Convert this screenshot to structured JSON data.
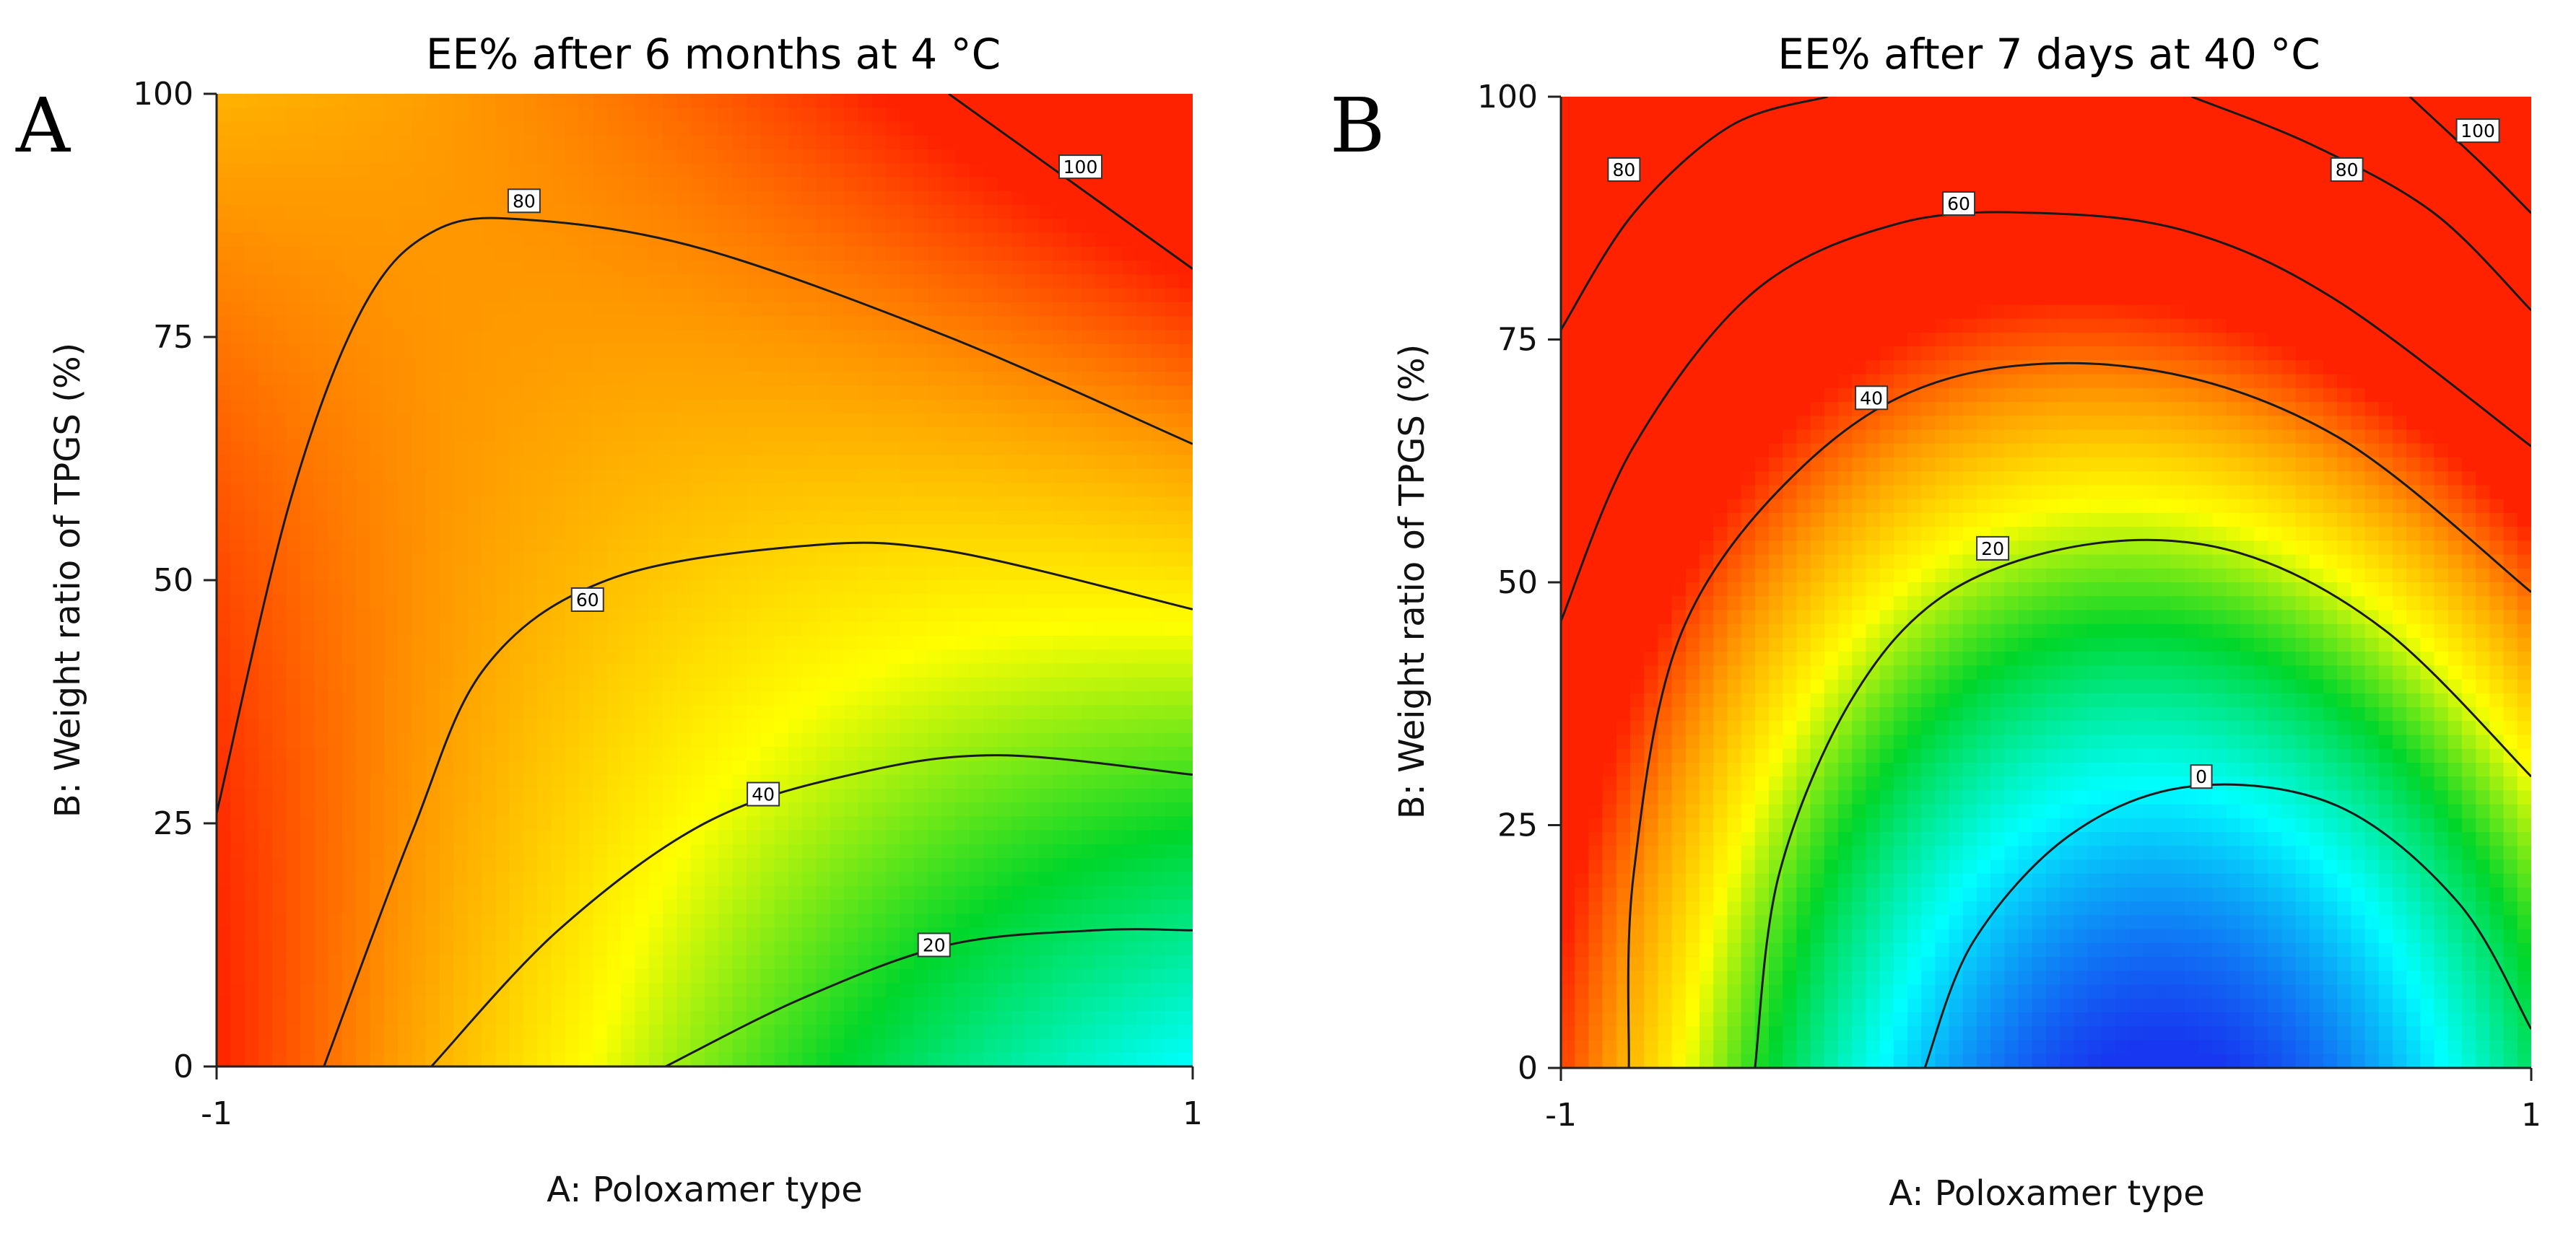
{
  "chart_data": [
    {
      "type": "heatmap",
      "panel": "A",
      "title": "EE% after 6 months at 4 °C",
      "xlabel": "A: Poloxamer type",
      "ylabel": "B: Weight ratio of TPGS (%)",
      "xlim": [
        -1,
        1
      ],
      "ylim": [
        0,
        100
      ],
      "x_ticks": [
        "-1",
        "1"
      ],
      "y_ticks": [
        "0",
        "25",
        "50",
        "75",
        "100"
      ],
      "colorscale": [
        "#1738f0",
        "#00ffff",
        "#00d62a",
        "#ffff00",
        "#ff9900",
        "#ff2200"
      ],
      "color_range": [
        0,
        100
      ],
      "contour_levels": [
        "20",
        "40",
        "60",
        "80",
        "100"
      ],
      "contours": [
        {
          "level": "20",
          "x": [
            -0.08,
            0.2,
            0.5,
            0.8,
            1.0
          ],
          "y": [
            0,
            7,
            12.5,
            14,
            14
          ]
        },
        {
          "level": "40",
          "x": [
            -0.56,
            -0.3,
            0.0,
            0.3,
            0.6,
            1.0
          ],
          "y": [
            0,
            14,
            25,
            30,
            32,
            30
          ]
        },
        {
          "level": "60",
          "x": [
            -0.78,
            -0.6,
            -0.45,
            -0.2,
            0.2,
            0.5,
            1.0
          ],
          "y": [
            0,
            24,
            41,
            50,
            53.5,
            53,
            47
          ]
        },
        {
          "level": "80",
          "x": [
            -1.0,
            -0.85,
            -0.7,
            -0.55,
            -0.35,
            0.0,
            0.5,
            1.0
          ],
          "y": [
            26,
            58,
            78,
            86,
            87,
            84,
            75,
            64
          ]
        },
        {
          "level": "100",
          "x": [
            0.5,
            0.75,
            1.0
          ],
          "y": [
            100,
            91,
            82
          ]
        }
      ],
      "contour_labels": [
        {
          "text": "20",
          "x": 0.47,
          "y": 12.5
        },
        {
          "text": "40",
          "x": 0.12,
          "y": 28
        },
        {
          "text": "60",
          "x": -0.24,
          "y": 48
        },
        {
          "text": "80",
          "x": -0.37,
          "y": 89
        },
        {
          "text": "100",
          "x": 0.77,
          "y": 92.5
        }
      ]
    },
    {
      "type": "heatmap",
      "panel": "B",
      "title": "EE% after 7 days at 40 °C",
      "xlabel": "A: Poloxamer type",
      "ylabel": "B: Weight ratio of TPGS (%)",
      "xlim": [
        -1,
        1
      ],
      "ylim": [
        0,
        100
      ],
      "x_ticks": [
        "-1",
        "1"
      ],
      "y_ticks": [
        "0",
        "25",
        "50",
        "75",
        "100"
      ],
      "colorscale": [
        "#1738f0",
        "#00ffff",
        "#00d62a",
        "#ffff00",
        "#ff9900",
        "#ff2200"
      ],
      "color_range": [
        0,
        100
      ],
      "contour_levels": [
        "0",
        "20",
        "40",
        "60",
        "80",
        "100"
      ],
      "contours": [
        {
          "level": "0",
          "x": [
            -0.25,
            -0.15,
            0.05,
            0.3,
            0.6,
            0.85,
            1.0
          ],
          "y": [
            0,
            13,
            24,
            29,
            27,
            17,
            4
          ]
        },
        {
          "level": "20",
          "x": [
            -0.6,
            -0.55,
            -0.4,
            -0.2,
            0.1,
            0.4,
            0.7,
            1.0
          ],
          "y": [
            0,
            20,
            38,
            49,
            54,
            53,
            45,
            30
          ]
        },
        {
          "level": "40",
          "x": [
            -0.86,
            -0.85,
            -0.75,
            -0.5,
            -0.2,
            0.2,
            0.6,
            1.0
          ],
          "y": [
            0,
            20,
            45,
            62,
            71,
            72,
            65,
            49
          ]
        },
        {
          "level": "60",
          "x": [
            -1.0,
            -0.85,
            -0.6,
            -0.3,
            0.0,
            0.3,
            0.6,
            1.0
          ],
          "y": [
            46,
            64,
            80,
            87,
            88,
            86,
            79,
            64
          ]
        },
        {
          "level": "80",
          "x": [
            -1.0,
            -0.85,
            -0.65,
            -0.45
          ],
          "y": [
            76,
            88,
            97,
            100
          ]
        },
        {
          "level": "80",
          "x": [
            0.3,
            0.55,
            0.8,
            1.0
          ],
          "y": [
            100,
            95,
            88,
            78
          ]
        },
        {
          "level": "100",
          "x": [
            0.75,
            0.9,
            1.0
          ],
          "y": [
            100,
            93,
            88
          ]
        }
      ],
      "contour_labels": [
        {
          "text": "0",
          "x": 0.32,
          "y": 30
        },
        {
          "text": "20",
          "x": -0.11,
          "y": 53.5
        },
        {
          "text": "40",
          "x": -0.36,
          "y": 69
        },
        {
          "text": "60",
          "x": -0.18,
          "y": 89
        },
        {
          "text": "80",
          "x": -0.87,
          "y": 92.5
        },
        {
          "text": "80",
          "x": 0.62,
          "y": 92.5
        },
        {
          "text": "100",
          "x": 0.89,
          "y": 96.5
        }
      ]
    }
  ]
}
